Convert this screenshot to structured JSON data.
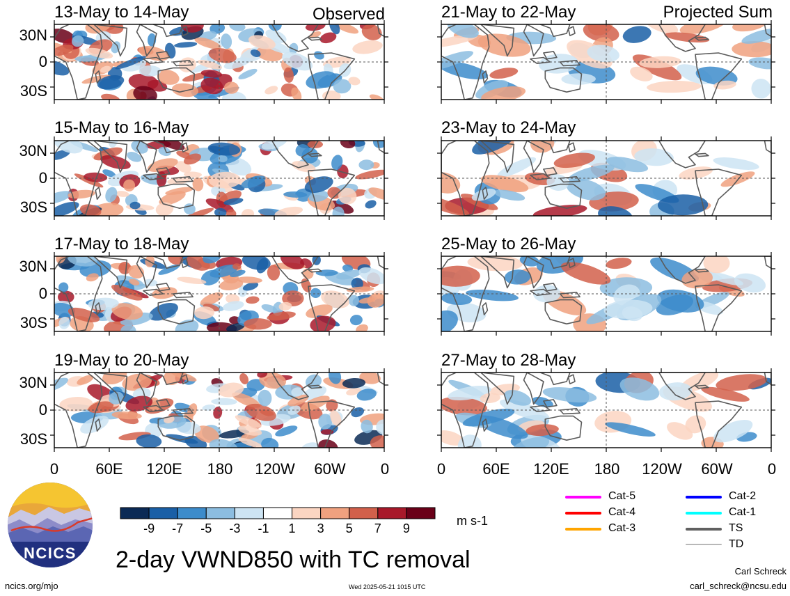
{
  "figure": {
    "title": "2-day VWND850 with TC removal",
    "url": "ncics.org/mjo",
    "timestamp": "Wed 2025-05-21 1015 UTC",
    "author": "Carl Schreck",
    "email": "carl_schreck@ncsu.edu",
    "logo_text": "NCICS"
  },
  "panels": {
    "observed_tag": "Observed",
    "projected_tag": "Projected Sum",
    "titles": [
      "13-May to 14-May",
      "21-May to 22-May",
      "15-May to 16-May",
      "23-May to 24-May",
      "17-May to 18-May",
      "25-May to 26-May",
      "19-May to 20-May",
      "27-May to 28-May"
    ]
  },
  "tc_legend": {
    "entries": [
      {
        "label": "Cat-5",
        "color": "#ff00ff"
      },
      {
        "label": "Cat-4",
        "color": "#ff0000"
      },
      {
        "label": "Cat-3",
        "color": "#ffa500"
      },
      {
        "label": "Cat-2",
        "color": "#0000ff"
      },
      {
        "label": "Cat-1",
        "color": "#00ffff"
      },
      {
        "label": "TS",
        "color": "#606060"
      },
      {
        "label": "TD",
        "color": "#b8b8b8"
      }
    ]
  },
  "chart_data": {
    "type": "heatmap",
    "variable": "VWND850",
    "units": "m s-1",
    "x_tick_labels": [
      "0",
      "60E",
      "120E",
      "180",
      "120W",
      "60W",
      "0"
    ],
    "y_tick_labels": [
      "30N",
      "0",
      "30S"
    ],
    "colorbar": {
      "tick_labels": [
        "-9",
        "-7",
        "-5",
        "-3",
        "-1",
        "1",
        "3",
        "5",
        "7",
        "9"
      ],
      "colors": [
        "#0b2a55",
        "#1a5fa6",
        "#3d8ccb",
        "#8cbde0",
        "#cde4f3",
        "#ffffff",
        "#fbd5c2",
        "#f0a17f",
        "#d2604b",
        "#a8192a",
        "#6a0018"
      ]
    }
  }
}
